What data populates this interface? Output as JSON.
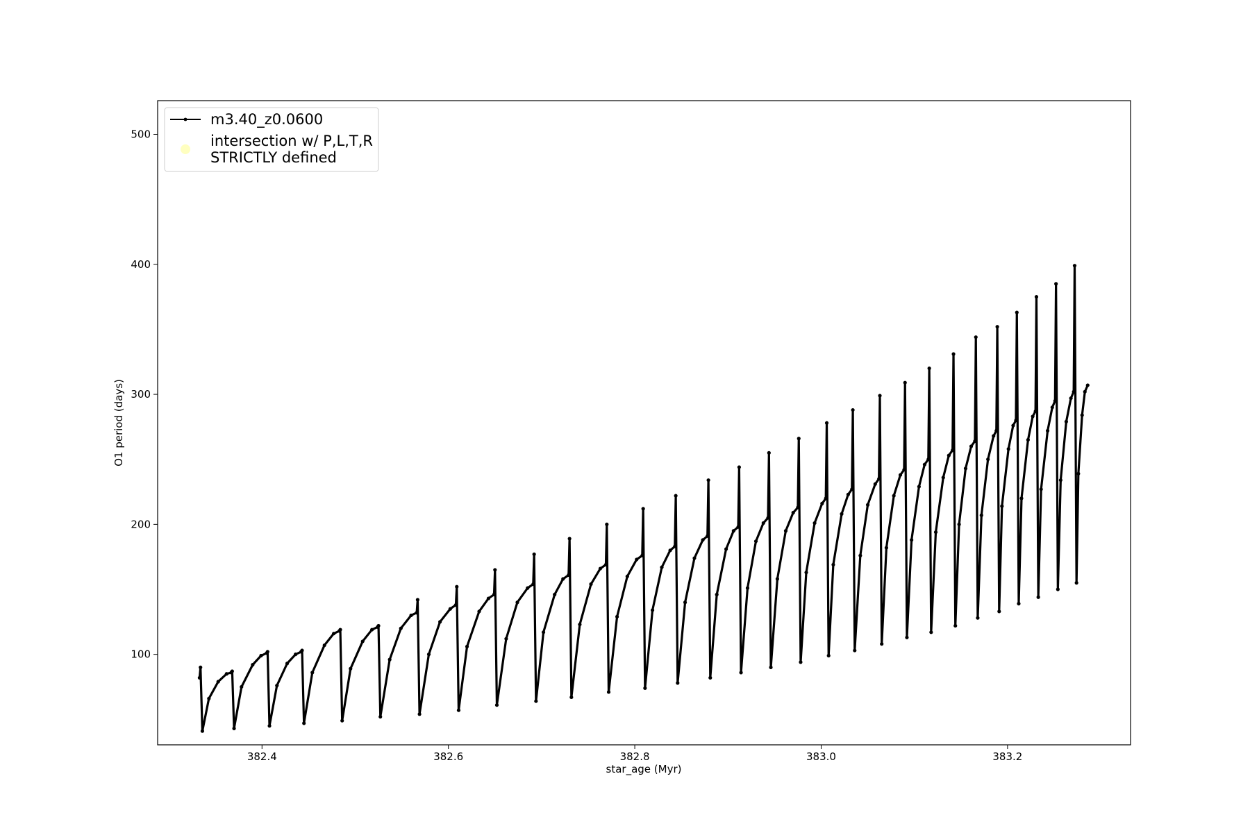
{
  "chart_data": {
    "type": "line",
    "xlabel": "star_age (Myr)",
    "ylabel": "O1 period (days)",
    "xlim": [
      382.288,
      383.332
    ],
    "ylim": [
      30.4,
      525.9
    ],
    "xticks": [
      382.4,
      382.6,
      382.8,
      {
        "value": 383,
        "label": "383.0"
      },
      383.2
    ],
    "yticks": [
      100,
      200,
      300,
      400,
      500
    ],
    "grid": false,
    "legend": "upper left",
    "series": [
      {
        "name": "m3.40_z0.0600",
        "color": "#000000",
        "marker": ".",
        "x": [
          382.333,
          382.334,
          382.336,
          382.343,
          382.353,
          382.362,
          382.367,
          382.368,
          382.37,
          382.378,
          382.39,
          382.399,
          382.405,
          382.406,
          382.408,
          382.416,
          382.427,
          382.436,
          382.442,
          382.443,
          382.445,
          382.454,
          382.467,
          382.477,
          382.483,
          382.484,
          382.486,
          382.495,
          382.508,
          382.518,
          382.524,
          382.525,
          382.527,
          382.537,
          382.549,
          382.56,
          382.566,
          382.567,
          382.569,
          382.579,
          382.591,
          382.602,
          382.608,
          382.609,
          382.611,
          382.62,
          382.633,
          382.643,
          382.649,
          382.65,
          382.652,
          382.662,
          382.674,
          382.685,
          382.691,
          382.692,
          382.694,
          382.702,
          382.714,
          382.723,
          382.729,
          382.73,
          382.732,
          382.741,
          382.753,
          382.763,
          382.769,
          382.77,
          382.772,
          382.781,
          382.792,
          382.802,
          382.808,
          382.809,
          382.811,
          382.819,
          382.829,
          382.838,
          382.843,
          382.844,
          382.846,
          382.854,
          382.864,
          382.873,
          382.878,
          382.879,
          382.881,
          382.888,
          382.898,
          382.906,
          382.911,
          382.912,
          382.914,
          382.921,
          382.93,
          382.938,
          382.943,
          382.944,
          382.946,
          382.953,
          382.962,
          382.97,
          382.975,
          382.976,
          382.978,
          382.984,
          382.993,
          383.001,
          383.005,
          383.006,
          383.008,
          383.013,
          383.022,
          383.029,
          383.033,
          383.034,
          383.036,
          383.042,
          383.05,
          383.058,
          383.062,
          383.063,
          383.065,
          383.07,
          383.078,
          383.085,
          383.089,
          383.09,
          383.092,
          383.097,
          383.105,
          383.111,
          383.115,
          383.116,
          383.118,
          383.123,
          383.131,
          383.137,
          383.141,
          383.142,
          383.144,
          383.148,
          383.155,
          383.161,
          383.165,
          383.166,
          383.168,
          383.172,
          383.179,
          383.185,
          383.188,
          383.189,
          383.191,
          383.194,
          383.201,
          383.206,
          383.209,
          383.21,
          383.212,
          383.215,
          383.222,
          383.227,
          383.23,
          383.231,
          383.233,
          383.236,
          383.243,
          383.248,
          383.251,
          383.252,
          383.254,
          383.257,
          383.263,
          383.268,
          383.271,
          383.272,
          383.274,
          383.276,
          383.28,
          383.283,
          383.286
        ],
        "values": [
          82,
          90,
          41,
          66,
          79,
          85,
          86,
          87,
          43,
          75,
          92,
          99,
          101,
          102,
          45,
          76,
          93,
          100,
          102,
          103,
          47,
          86,
          107,
          116,
          118,
          119,
          49,
          89,
          110,
          119,
          121,
          122,
          52,
          96,
          120,
          130,
          132,
          142,
          54,
          100,
          125,
          135,
          138,
          152,
          57,
          106,
          133,
          143,
          146,
          165,
          61,
          112,
          140,
          151,
          154,
          177,
          64,
          117,
          146,
          158,
          161,
          189,
          67,
          123,
          154,
          166,
          169,
          200,
          71,
          129,
          160,
          173,
          176,
          212,
          74,
          134,
          167,
          180,
          183,
          222,
          78,
          140,
          174,
          188,
          191,
          234,
          82,
          146,
          181,
          195,
          198,
          244,
          86,
          151,
          187,
          201,
          205,
          255,
          90,
          158,
          195,
          209,
          213,
          266,
          94,
          163,
          201,
          216,
          220,
          278,
          99,
          169,
          208,
          223,
          227,
          288,
          103,
          176,
          215,
          231,
          235,
          299,
          108,
          182,
          222,
          238,
          242,
          309,
          113,
          188,
          229,
          246,
          250,
          320,
          117,
          194,
          236,
          253,
          257,
          331,
          122,
          200,
          243,
          260,
          264,
          344,
          128,
          207,
          250,
          268,
          272,
          352,
          133,
          214,
          258,
          276,
          280,
          363,
          139,
          220,
          265,
          283,
          287,
          375,
          144,
          227,
          272,
          290,
          295,
          385,
          150,
          234,
          279,
          297,
          302,
          399,
          155,
          239,
          284,
          302,
          307
        ]
      },
      {
        "name": "intersection w/ P,L,T,R\nSTRICTLY defined",
        "color": "#ffffb0",
        "marker": "o",
        "x": [],
        "values": []
      }
    ]
  }
}
